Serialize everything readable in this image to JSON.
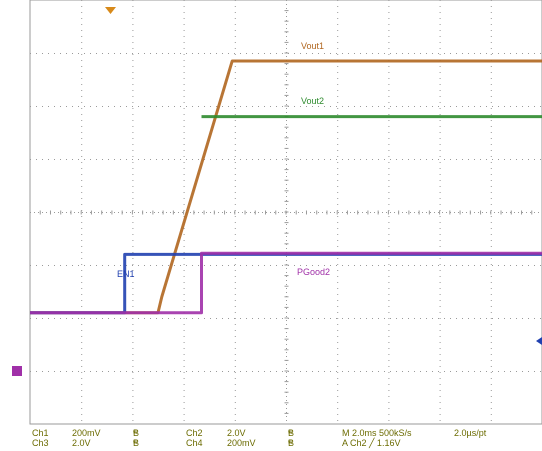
{
  "chart_data": {
    "type": "line",
    "title": "",
    "xlabel": "",
    "ylabel": "",
    "x_unit": "ms",
    "xlim": [
      -7.0,
      13.0
    ],
    "ylim": [
      -4,
      4
    ],
    "grid": true,
    "series": [
      {
        "name": "Vout1",
        "color": "#b0661f",
        "x": [
          -7.0,
          -2.0,
          -1.85,
          0.9,
          13.0
        ],
        "y": [
          -1.9,
          -1.9,
          -1.6,
          2.85,
          2.85
        ]
      },
      {
        "name": "Vout2",
        "color": "#2e8b2e",
        "x": [
          -0.3,
          13.0
        ],
        "y": [
          1.8,
          1.8
        ]
      },
      {
        "name": "EN1",
        "color": "#2040b0",
        "x": [
          -7.0,
          -3.3,
          -3.3,
          13.0
        ],
        "y": [
          -1.9,
          -1.9,
          -0.8,
          -0.8
        ]
      },
      {
        "name": "PGood2",
        "color": "#a030a8",
        "x": [
          -7.0,
          -0.3,
          -0.3,
          13.0
        ],
        "y": [
          -1.9,
          -1.9,
          -0.78,
          -0.78
        ]
      }
    ],
    "labels": {
      "vout1": "Vout1",
      "vout2": "Vout2",
      "en1": "EN1",
      "pgood2": "PGood2"
    },
    "status": {
      "ch1": "Ch1",
      "ch1_scale": "200mV",
      "ch3": "Ch3",
      "ch3_scale": "2.0V",
      "ch2": "Ch2",
      "ch2_scale": "2.0V",
      "ch4": "Ch4",
      "ch4_scale": "200mV",
      "bw_b": "B",
      "bw_w": "w",
      "timebase": "M 2.0ms 500kS/s",
      "pt": "2.0µs/pt",
      "trigger": "A  Ch2  ╱  1.16V"
    },
    "colors": {
      "grid": "#9a9a9a",
      "status_text": "#6b6b00",
      "trigger_marker": "#d88a1a",
      "level_marker": "#2040b0"
    }
  }
}
